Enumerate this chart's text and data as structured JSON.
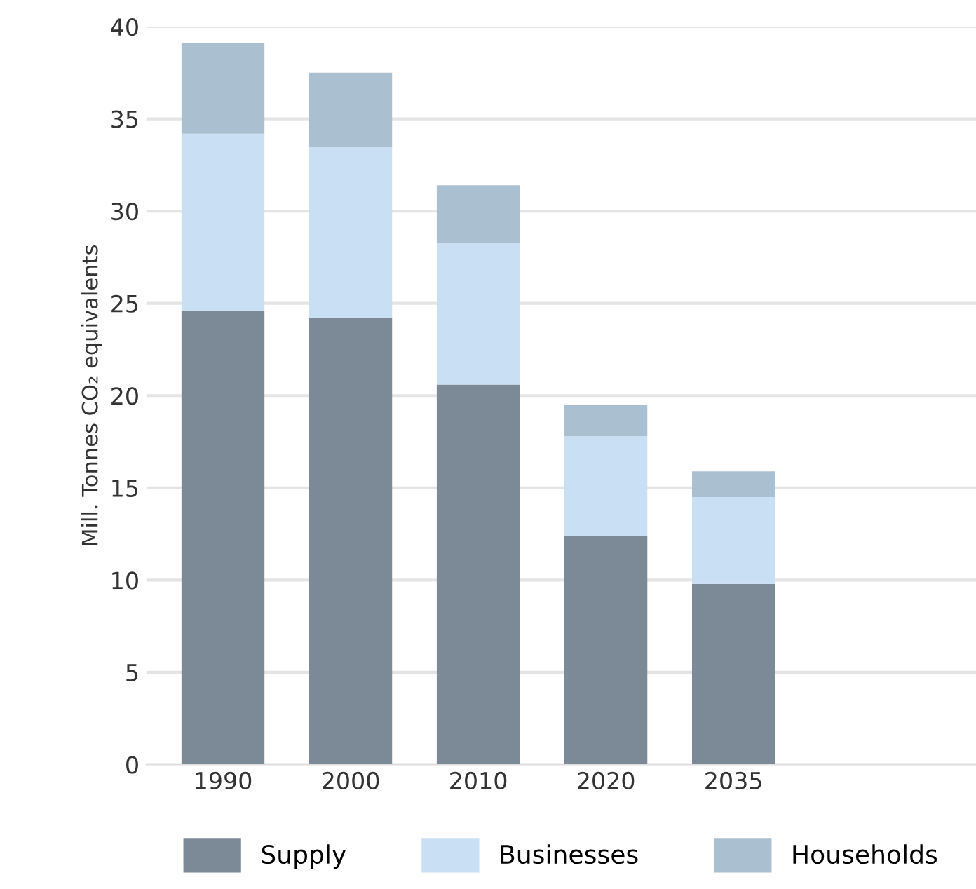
{
  "chart_data": {
    "type": "bar",
    "stacked": true,
    "ylabel": "Mill. Tonnes CO₂ equivalents",
    "categories": [
      "1990",
      "2000",
      "2010",
      "2020",
      "2035"
    ],
    "series": [
      {
        "name": "Supply",
        "color": "#7b8a96",
        "values": [
          24.6,
          24.2,
          20.6,
          12.4,
          9.8
        ]
      },
      {
        "name": "Businesses",
        "color": "#c9dff4",
        "values": [
          9.6,
          9.3,
          7.7,
          5.4,
          4.7
        ]
      },
      {
        "name": "Households",
        "color": "#aabfcf",
        "values": [
          4.9,
          4.0,
          3.1,
          1.7,
          1.4
        ]
      }
    ],
    "ylim": [
      0,
      40
    ],
    "yticks": [
      0,
      5,
      10,
      15,
      20,
      25,
      30,
      35,
      40
    ],
    "grid": "y",
    "legend": "bottom"
  }
}
